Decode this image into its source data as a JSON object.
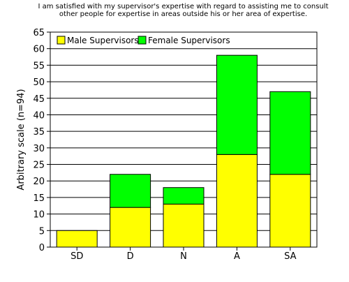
{
  "chart_data": {
    "type": "bar",
    "stacked": true,
    "title": "I am satisfied with my supervisor's expertise with regard to assisting me to consult other people for expertise in areas outside his or her area of expertise.",
    "xlabel": "",
    "ylabel": "Arbitrary scale (n=94)",
    "categories": [
      "SD",
      "D",
      "N",
      "A",
      "SA"
    ],
    "ylim": [
      0,
      65
    ],
    "yticks": [
      0,
      5,
      10,
      15,
      20,
      25,
      30,
      35,
      40,
      45,
      50,
      55,
      60,
      65
    ],
    "grid": true,
    "legend": "top-left",
    "series": [
      {
        "name": "Male Supervisors",
        "color": "#ffff00",
        "values": [
          5,
          12,
          13,
          28,
          22
        ]
      },
      {
        "name": "Female Supervisors",
        "color": "#00ff00",
        "values": [
          0,
          10,
          5,
          30,
          25
        ]
      }
    ]
  }
}
